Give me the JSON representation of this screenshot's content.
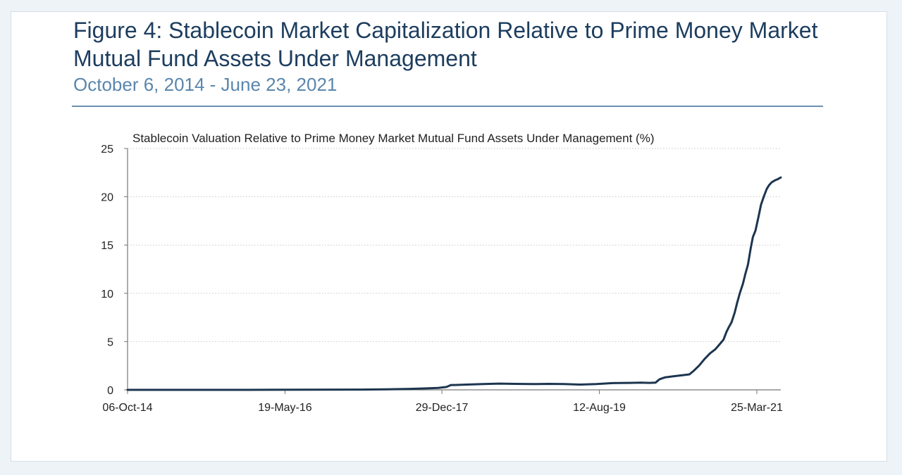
{
  "figure": {
    "title": "Figure 4:  Stablecoin Market Capitalization Relative to Prime Money Market Mutual Fund Assets Under Management",
    "subtitle": "October 6, 2014 - June 23, 2021"
  },
  "chart_data": {
    "type": "line",
    "title": "Stablecoin Valuation Relative to Prime Money Market Mutual Fund Assets Under Management (%)",
    "xlabel": "",
    "ylabel": "",
    "xlim": [
      "2014-10-06",
      "2021-06-23"
    ],
    "ylim": [
      0,
      25
    ],
    "y_ticks": [
      0,
      5,
      10,
      15,
      20,
      25
    ],
    "x_ticks": [
      {
        "date": "2014-10-06",
        "label": "06-Oct-14"
      },
      {
        "date": "2016-05-19",
        "label": "19-May-16"
      },
      {
        "date": "2017-12-29",
        "label": "29-Dec-17"
      },
      {
        "date": "2019-08-12",
        "label": "12-Aug-19"
      },
      {
        "date": "2021-03-25",
        "label": "25-Mar-21"
      }
    ],
    "grid": "horizontal-dotted",
    "line_color": "#1c3550",
    "series": [
      {
        "x": [
          "2014-10-06",
          "2015-06-01",
          "2016-01-01",
          "2016-09-01",
          "2017-03-01",
          "2017-06-01",
          "2017-09-01",
          "2017-11-01",
          "2017-12-15",
          "2018-01-15",
          "2018-02-01",
          "2018-02-15",
          "2018-04-01",
          "2018-06-01",
          "2018-08-01",
          "2018-10-01",
          "2018-12-01",
          "2019-02-01",
          "2019-04-01",
          "2019-06-01",
          "2019-08-01",
          "2019-10-01",
          "2019-12-01",
          "2020-01-15",
          "2020-02-15",
          "2020-03-10",
          "2020-03-25",
          "2020-04-15",
          "2020-05-15",
          "2020-06-15",
          "2020-07-15",
          "2020-08-01",
          "2020-08-20",
          "2020-09-10",
          "2020-10-01",
          "2020-10-20",
          "2020-11-05",
          "2020-11-20",
          "2020-12-01",
          "2020-12-10",
          "2020-12-20",
          "2021-01-01",
          "2021-01-10",
          "2021-01-20",
          "2021-02-01",
          "2021-02-10",
          "2021-02-20",
          "2021-03-01",
          "2021-03-10",
          "2021-03-20",
          "2021-04-01",
          "2021-04-10",
          "2021-04-20",
          "2021-05-01",
          "2021-05-10",
          "2021-05-20",
          "2021-06-01",
          "2021-06-10",
          "2021-06-23"
        ],
        "y": [
          0.0,
          0.0,
          0.0,
          0.02,
          0.03,
          0.05,
          0.1,
          0.15,
          0.2,
          0.3,
          0.5,
          0.5,
          0.55,
          0.6,
          0.65,
          0.62,
          0.6,
          0.62,
          0.6,
          0.55,
          0.6,
          0.7,
          0.72,
          0.75,
          0.72,
          0.75,
          1.1,
          1.3,
          1.4,
          1.5,
          1.6,
          2.0,
          2.5,
          3.2,
          3.8,
          4.2,
          4.7,
          5.2,
          6.0,
          6.5,
          7.0,
          8.0,
          9.0,
          10.0,
          11.0,
          12.0,
          13.0,
          14.5,
          15.8,
          16.5,
          18.0,
          19.2,
          20.0,
          20.8,
          21.2,
          21.5,
          21.7,
          21.8,
          22.0
        ]
      }
    ]
  }
}
